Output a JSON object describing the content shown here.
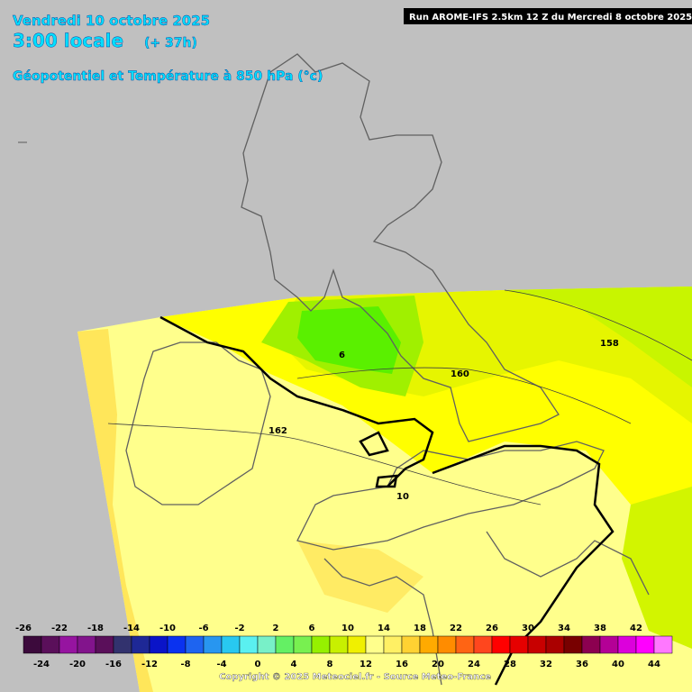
{
  "header": {
    "date": "Vendredi 10 octobre 2025",
    "time": "3:00 locale",
    "lead": "(+ 37h)",
    "field": "Géopotentiel et Température à 850 hPa (°c)",
    "run": "Run AROME-IFS 2.5km 12 Z du Mercredi 8 octobre 2025"
  },
  "geopotential_labels": [
    158,
    160,
    162
  ],
  "temperature_labels": [
    6,
    10
  ],
  "scale": {
    "values": [
      -26,
      -24,
      -22,
      -20,
      -18,
      -16,
      -14,
      -12,
      -10,
      -8,
      -6,
      -4,
      -2,
      0,
      2,
      4,
      6,
      8,
      10,
      12,
      14,
      16,
      18,
      20,
      22,
      24,
      26,
      28,
      30,
      32,
      34,
      36,
      38,
      40,
      42,
      44
    ],
    "colors": [
      "#3c0a3c",
      "#5a0f5a",
      "#9614a0",
      "#82148c",
      "#5a0f5a",
      "#32326e",
      "#1e2896",
      "#0a14c8",
      "#0a32f0",
      "#1e64f0",
      "#2896f0",
      "#28c8f0",
      "#5af0f0",
      "#78f0c8",
      "#64f064",
      "#78f050",
      "#96f000",
      "#c8f000",
      "#f0f000",
      "#ffff8c",
      "#fff064",
      "#ffd232",
      "#ffaa00",
      "#ff8c00",
      "#ff6414",
      "#ff461e",
      "#ff0000",
      "#e60000",
      "#c80000",
      "#aa0000",
      "#780000",
      "#8c0050",
      "#b40096",
      "#dc00dc",
      "#ff00ff",
      "#ff78ff"
    ]
  },
  "copyright": "Copyright © 2025 Meteociel.fr - Source Meteo-France"
}
